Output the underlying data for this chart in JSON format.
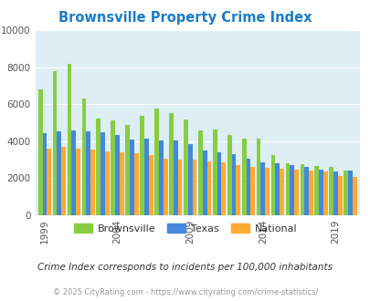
{
  "title": "Brownsville Property Crime Index",
  "title_color": "#1a7cc7",
  "years": [
    1999,
    2000,
    2001,
    2002,
    2003,
    2004,
    2005,
    2006,
    2007,
    2008,
    2009,
    2010,
    2011,
    2012,
    2013,
    2014,
    2015,
    2016,
    2017,
    2018,
    2019,
    2020
  ],
  "brownsville": [
    6800,
    7800,
    8200,
    6300,
    5200,
    5100,
    4900,
    5350,
    5750,
    5500,
    5150,
    4600,
    4650,
    4350,
    4150,
    4150,
    3250,
    2800,
    2750,
    2650,
    2600,
    2400
  ],
  "texas": [
    4450,
    4550,
    4600,
    4550,
    4500,
    4350,
    4100,
    4150,
    4050,
    4050,
    3850,
    3500,
    3400,
    3300,
    3050,
    2850,
    2800,
    2700,
    2600,
    2450,
    2350,
    2400
  ],
  "national": [
    3600,
    3700,
    3600,
    3550,
    3450,
    3400,
    3350,
    3250,
    3050,
    3000,
    2980,
    2900,
    2850,
    2700,
    2600,
    2550,
    2500,
    2450,
    2400,
    2350,
    2100,
    2050
  ],
  "brownsville_color": "#88cc44",
  "texas_color": "#4488dd",
  "national_color": "#ffaa33",
  "plot_bg_color": "#ddeef4",
  "ylim": [
    0,
    10000
  ],
  "yticks": [
    0,
    2000,
    4000,
    6000,
    8000,
    10000
  ],
  "xtick_years": [
    1999,
    2004,
    2009,
    2014,
    2019
  ],
  "subtitle": "Crime Index corresponds to incidents per 100,000 inhabitants",
  "footer": "© 2025 CityRating.com - https://www.cityrating.com/crime-statistics/",
  "legend_labels": [
    "Brownsville",
    "Texas",
    "National"
  ]
}
